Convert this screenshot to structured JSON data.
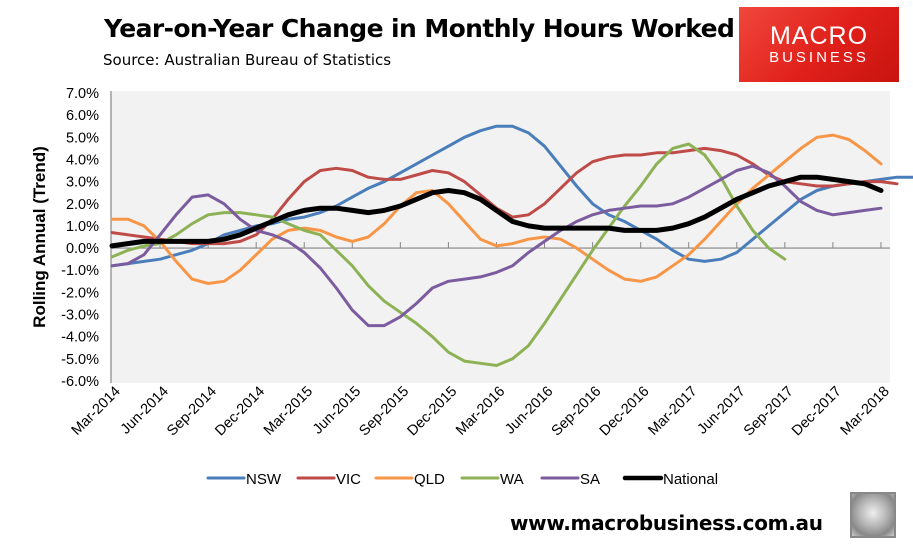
{
  "header": {
    "title": "Year-on-Year Change in Monthly Hours Worked",
    "subtitle": "Source: Australian Bureau of Statistics"
  },
  "logo": {
    "line1": "MACRO",
    "line2": "BUSINESS",
    "color": "#e0201a"
  },
  "footer": {
    "url": "www.macrobusiness.com.au",
    "mascot": "fox-icon"
  },
  "chart_data": {
    "type": "line",
    "title": "Year-on-Year Change in Monthly Hours Worked",
    "subtitle": "Source: Australian Bureau of Statistics",
    "xlabel": "",
    "ylabel": "Rolling Annual (Trend)",
    "ylim": [
      -6.0,
      7.0
    ],
    "yticks": [
      "7.0%",
      "6.0%",
      "5.0%",
      "4.0%",
      "3.0%",
      "2.0%",
      "1.0%",
      "0.0%",
      "-1.0%",
      "-2.0%",
      "-3.0%",
      "-4.0%",
      "-5.0%",
      "-6.0%"
    ],
    "xticks": [
      "Mar-2014",
      "Jun-2014",
      "Sep-2014",
      "Dec-2014",
      "Mar-2015",
      "Jun-2015",
      "Sep-2015",
      "Dec-2015",
      "Mar-2016",
      "Jun-2016",
      "Sep-2016",
      "Dec-2016",
      "Mar-2017",
      "Jun-2017",
      "Sep-2017",
      "Dec-2017",
      "Mar-2018"
    ],
    "grid": false,
    "legend_position": "bottom",
    "x_frequency": "monthly",
    "x_start": "Mar-2014",
    "x_end": "Mar-2018",
    "series": [
      {
        "name": "NSW",
        "color": "#4a7ebb",
        "width": 3,
        "values": [
          -0.8,
          -0.7,
          -0.6,
          -0.5,
          -0.3,
          -0.1,
          0.2,
          0.6,
          0.8,
          1.0,
          1.1,
          1.3,
          1.4,
          1.6,
          1.9,
          2.3,
          2.7,
          3.0,
          3.4,
          3.8,
          4.2,
          4.6,
          5.0,
          5.3,
          5.5,
          5.5,
          5.2,
          4.6,
          3.7,
          2.8,
          2.0,
          1.5,
          1.2,
          0.8,
          0.4,
          -0.1,
          -0.5,
          -0.6,
          -0.5,
          -0.2,
          0.4,
          1.0,
          1.6,
          2.2,
          2.6,
          2.8,
          2.9,
          3.0,
          3.1,
          3.2,
          3.2,
          2.9
        ]
      },
      {
        "name": "VIC",
        "color": "#be4b48",
        "width": 3,
        "values": [
          0.7,
          0.6,
          0.5,
          0.4,
          0.3,
          0.2,
          0.2,
          0.2,
          0.3,
          0.6,
          1.3,
          2.2,
          3.0,
          3.5,
          3.6,
          3.5,
          3.2,
          3.1,
          3.1,
          3.3,
          3.5,
          3.4,
          3.0,
          2.4,
          1.8,
          1.4,
          1.5,
          2.0,
          2.7,
          3.4,
          3.9,
          4.1,
          4.2,
          4.2,
          4.3,
          4.3,
          4.4,
          4.5,
          4.4,
          4.2,
          3.8,
          3.3,
          3.0,
          2.9,
          2.8,
          2.8,
          2.9,
          3.0,
          3.0,
          2.9
        ]
      },
      {
        "name": "QLD",
        "color": "#f79646",
        "width": 3,
        "values": [
          1.3,
          1.3,
          1.0,
          0.3,
          -0.6,
          -1.4,
          -1.6,
          -1.5,
          -1.0,
          -0.3,
          0.4,
          0.8,
          0.9,
          0.8,
          0.5,
          0.3,
          0.5,
          1.1,
          1.9,
          2.5,
          2.6,
          2.0,
          1.2,
          0.4,
          0.1,
          0.2,
          0.4,
          0.5,
          0.4,
          0.0,
          -0.5,
          -1.0,
          -1.4,
          -1.5,
          -1.3,
          -0.8,
          -0.3,
          0.4,
          1.2,
          2.0,
          2.7,
          3.3,
          3.9,
          4.5,
          5.0,
          5.1,
          4.9,
          4.4,
          3.8
        ]
      },
      {
        "name": "WA",
        "color": "#8db255",
        "width": 3,
        "values": [
          -0.4,
          -0.1,
          0.1,
          0.2,
          0.6,
          1.1,
          1.5,
          1.6,
          1.6,
          1.5,
          1.4,
          1.1,
          0.8,
          0.6,
          -0.1,
          -0.8,
          -1.7,
          -2.4,
          -2.9,
          -3.4,
          -4.0,
          -4.7,
          -5.1,
          -5.2,
          -5.3,
          -5.0,
          -4.4,
          -3.4,
          -2.3,
          -1.2,
          -0.1,
          0.9,
          1.9,
          2.8,
          3.8,
          4.5,
          4.7,
          4.2,
          3.2,
          1.9,
          0.8,
          0.0,
          -0.5
        ]
      },
      {
        "name": "SA",
        "color": "#7b5c9e",
        "width": 3,
        "values": [
          -0.8,
          -0.7,
          -0.3,
          0.6,
          1.5,
          2.3,
          2.4,
          2.0,
          1.3,
          0.8,
          0.6,
          0.3,
          -0.2,
          -0.9,
          -1.8,
          -2.8,
          -3.5,
          -3.5,
          -3.1,
          -2.5,
          -1.8,
          -1.5,
          -1.4,
          -1.3,
          -1.1,
          -0.8,
          -0.2,
          0.3,
          0.8,
          1.2,
          1.5,
          1.7,
          1.8,
          1.9,
          1.9,
          2.0,
          2.3,
          2.7,
          3.1,
          3.5,
          3.7,
          3.4,
          2.8,
          2.1,
          1.7,
          1.5,
          1.6,
          1.7,
          1.8
        ]
      },
      {
        "name": "National",
        "color": "#000000",
        "width": 5,
        "values": [
          0.1,
          0.2,
          0.3,
          0.3,
          0.3,
          0.3,
          0.3,
          0.4,
          0.6,
          0.9,
          1.2,
          1.5,
          1.7,
          1.8,
          1.8,
          1.7,
          1.6,
          1.7,
          1.9,
          2.2,
          2.5,
          2.6,
          2.5,
          2.2,
          1.7,
          1.2,
          1.0,
          0.9,
          0.9,
          0.9,
          0.9,
          0.9,
          0.8,
          0.8,
          0.8,
          0.9,
          1.1,
          1.4,
          1.8,
          2.2,
          2.5,
          2.8,
          3.0,
          3.2,
          3.2,
          3.1,
          3.0,
          2.9,
          2.6
        ]
      }
    ]
  }
}
